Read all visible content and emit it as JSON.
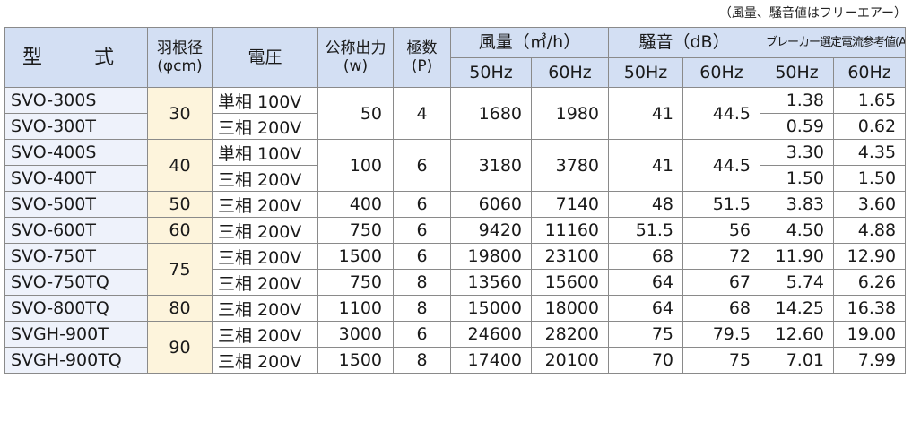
{
  "note": "（風量、騒音値はフリーエアー）",
  "headers": {
    "model": "型　式",
    "blade_line1": "羽根径",
    "blade_line2": "(φcm)",
    "voltage": "電圧",
    "power_line1": "公称出力",
    "power_line2": "(w)",
    "poles_line1": "極数",
    "poles_line2": "(P)",
    "airflow": "風量（㎥/h）",
    "noise": "騒音（dB）",
    "current": "ブレーカー選定電流参考値(A)",
    "hz50": "50Hz",
    "hz60": "60Hz"
  },
  "rows": [
    {
      "model": "SVO-300S",
      "voltage": "単相 100V",
      "cur50": "1.38",
      "cur60": "1.65"
    },
    {
      "model": "SVO-300T",
      "voltage": "三相 200V",
      "cur50": "0.59",
      "cur60": "0.62"
    },
    {
      "model": "SVO-400S",
      "voltage": "単相 100V",
      "cur50": "3.30",
      "cur60": "4.35"
    },
    {
      "model": "SVO-400T",
      "voltage": "三相 200V",
      "cur50": "1.50",
      "cur60": "1.50"
    },
    {
      "model": "SVO-500T",
      "voltage": "三相 200V",
      "cur50": "3.83",
      "cur60": "3.60"
    },
    {
      "model": "SVO-600T",
      "voltage": "三相 200V",
      "cur50": "4.50",
      "cur60": "4.88"
    },
    {
      "model": "SVO-750T",
      "voltage": "三相 200V",
      "cur50": "11.90",
      "cur60": "12.90"
    },
    {
      "model": "SVO-750TQ",
      "voltage": "三相 200V",
      "cur50": "5.74",
      "cur60": "6.26"
    },
    {
      "model": "SVO-800TQ",
      "voltage": "三相 200V",
      "cur50": "14.25",
      "cur60": "16.38"
    },
    {
      "model": "SVGH-900T",
      "voltage": "三相 200V",
      "cur50": "12.60",
      "cur60": "19.00"
    },
    {
      "model": "SVGH-900TQ",
      "voltage": "三相 200V",
      "cur50": "7.01",
      "cur60": "7.99"
    }
  ],
  "blade": [
    "30",
    "40",
    "50",
    "60",
    "75",
    "80",
    "90"
  ],
  "power": [
    "50",
    "100",
    "400",
    "750",
    "1500",
    "750",
    "1100",
    "3000",
    "1500"
  ],
  "poles": [
    "4",
    "6",
    "6",
    "6",
    "6",
    "8",
    "8",
    "6",
    "8"
  ],
  "air50": [
    "1680",
    "3180",
    "6060",
    "9420",
    "19800",
    "13560",
    "15000",
    "24600",
    "17400"
  ],
  "air60": [
    "1980",
    "3780",
    "7140",
    "11160",
    "23100",
    "15600",
    "18000",
    "28200",
    "20100"
  ],
  "noise50": [
    "41",
    "41",
    "48",
    "51.5",
    "68",
    "64",
    "64",
    "75",
    "70"
  ],
  "noise60": [
    "44.5",
    "44.5",
    "51.5",
    "56",
    "72",
    "67",
    "68",
    "79.5",
    "75"
  ]
}
